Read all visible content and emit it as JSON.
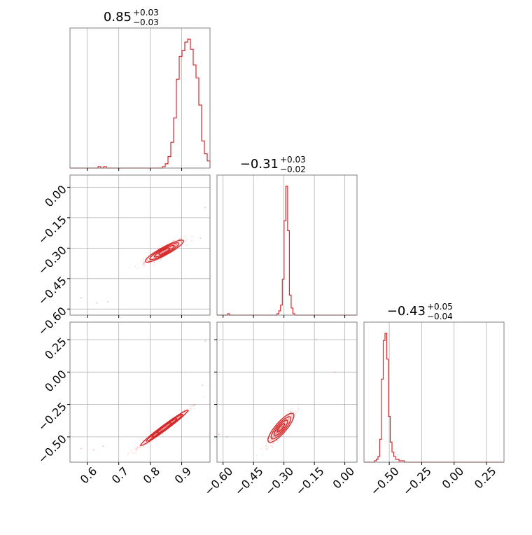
{
  "colors": {
    "accent": "#d62728",
    "grid": "#b0b0b0",
    "frame": "#808080"
  },
  "chart_data": {
    "type": "corner",
    "titles": [
      {
        "value": "0.85",
        "plus": "+0.03",
        "minus": "−0.03"
      },
      {
        "value": "−0.31",
        "plus": "+0.03",
        "minus": "−0.02"
      },
      {
        "value": "−0.43",
        "plus": "+0.05",
        "minus": "−0.04"
      }
    ],
    "ranges": [
      [
        0.545,
        0.99
      ],
      [
        -0.63,
        0.06
      ],
      [
        -0.695,
        0.385
      ]
    ],
    "grid": true,
    "ticks": [
      {
        "values": [
          0.6,
          0.7,
          0.8,
          0.9
        ],
        "labels": [
          "0.6",
          "0.7",
          "0.8",
          "0.9"
        ]
      },
      {
        "values": [
          -0.6,
          -0.45,
          -0.3,
          -0.15,
          0.0
        ],
        "labels": [
          "−0.60",
          "−0.45",
          "−0.30",
          "−0.15",
          "0.00"
        ]
      },
      {
        "values": [
          -0.5,
          -0.25,
          0.0,
          0.25
        ],
        "labels": [
          "−0.50",
          "−0.25",
          "0.00",
          "0.25"
        ]
      }
    ],
    "histograms": [
      {
        "edges_start": 0.545,
        "bin_width": 0.0089,
        "counts": [
          0,
          0,
          0,
          0,
          0,
          0,
          0,
          0,
          0,
          0,
          1,
          0,
          1,
          0,
          0,
          0,
          0,
          0,
          0,
          0,
          0,
          0,
          0,
          0,
          0,
          0,
          0,
          0,
          0,
          0,
          0,
          0,
          0,
          1,
          3,
          8,
          18,
          35,
          62,
          78,
          82,
          88,
          90,
          83,
          72,
          63,
          44,
          19,
          10,
          5,
          0,
          0,
          0,
          0,
          0
        ]
      },
      {
        "edges_start": -0.63,
        "bin_width": 0.0087,
        "counts": [
          0,
          0,
          0,
          0,
          0,
          0,
          1,
          0,
          0,
          0,
          0,
          0,
          0,
          0,
          0,
          0,
          0,
          0,
          0,
          0,
          0,
          0,
          0,
          0,
          0,
          0,
          0,
          0,
          0,
          0,
          0,
          0,
          0,
          0,
          1,
          3,
          7,
          25,
          66,
          90,
          59,
          14,
          5,
          1,
          0,
          0,
          0,
          0,
          0,
          0,
          0,
          0,
          0,
          0,
          0,
          0,
          0,
          0,
          0,
          0,
          0,
          0,
          0,
          0,
          0,
          0,
          0,
          0,
          0,
          0,
          0,
          0,
          0,
          0,
          0,
          0,
          0,
          0,
          0
        ]
      },
      {
        "edges_start": -0.695,
        "bin_width": 0.0135,
        "counts": [
          0,
          0,
          0,
          0,
          0,
          0,
          1,
          2,
          4,
          16,
          58,
          85,
          90,
          72,
          32,
          14,
          7,
          4,
          2,
          2,
          1,
          1,
          1,
          0,
          0,
          0,
          0,
          0,
          0,
          0,
          0,
          0,
          0,
          0,
          0,
          0,
          0,
          0,
          0,
          0,
          0,
          0,
          0,
          0,
          0,
          0,
          0,
          0,
          0,
          0,
          0,
          0,
          0,
          0,
          0,
          0,
          0,
          0,
          0,
          0,
          0,
          0,
          0,
          0,
          0,
          0,
          0,
          0,
          0,
          0,
          0,
          0,
          0,
          0,
          0,
          0,
          0,
          0,
          0,
          0
        ]
      }
    ],
    "scatter": [
      {
        "row": 1,
        "col": 0,
        "center": [
          0.845,
          -0.315
        ],
        "slope": 0.85,
        "spread": [
          0.02,
          0.012
        ],
        "outliers": [
          [
            0.58,
            -0.545
          ],
          [
            0.63,
            -0.57
          ],
          [
            0.665,
            -0.565
          ],
          [
            0.975,
            -0.1
          ],
          [
            0.96,
            -0.25
          ]
        ]
      },
      {
        "row": 2,
        "col": 0,
        "center": [
          0.845,
          -0.43
        ],
        "slope": 1.8,
        "spread": [
          0.025,
          0.012
        ],
        "outliers": [
          [
            0.58,
            -0.59
          ],
          [
            0.62,
            -0.6
          ],
          [
            0.965,
            -0.1
          ],
          [
            0.975,
            0.24
          ],
          [
            0.65,
            -0.57
          ]
        ]
      },
      {
        "row": 2,
        "col": 1,
        "center": [
          -0.315,
          -0.43
        ],
        "slope": 1.8,
        "spread": [
          0.02,
          0.025
        ],
        "outliers": [
          [
            -0.62,
            -0.48
          ],
          [
            -0.58,
            -0.5
          ],
          [
            -0.14,
            0.25
          ],
          [
            -0.05,
            0.0
          ]
        ]
      }
    ]
  }
}
